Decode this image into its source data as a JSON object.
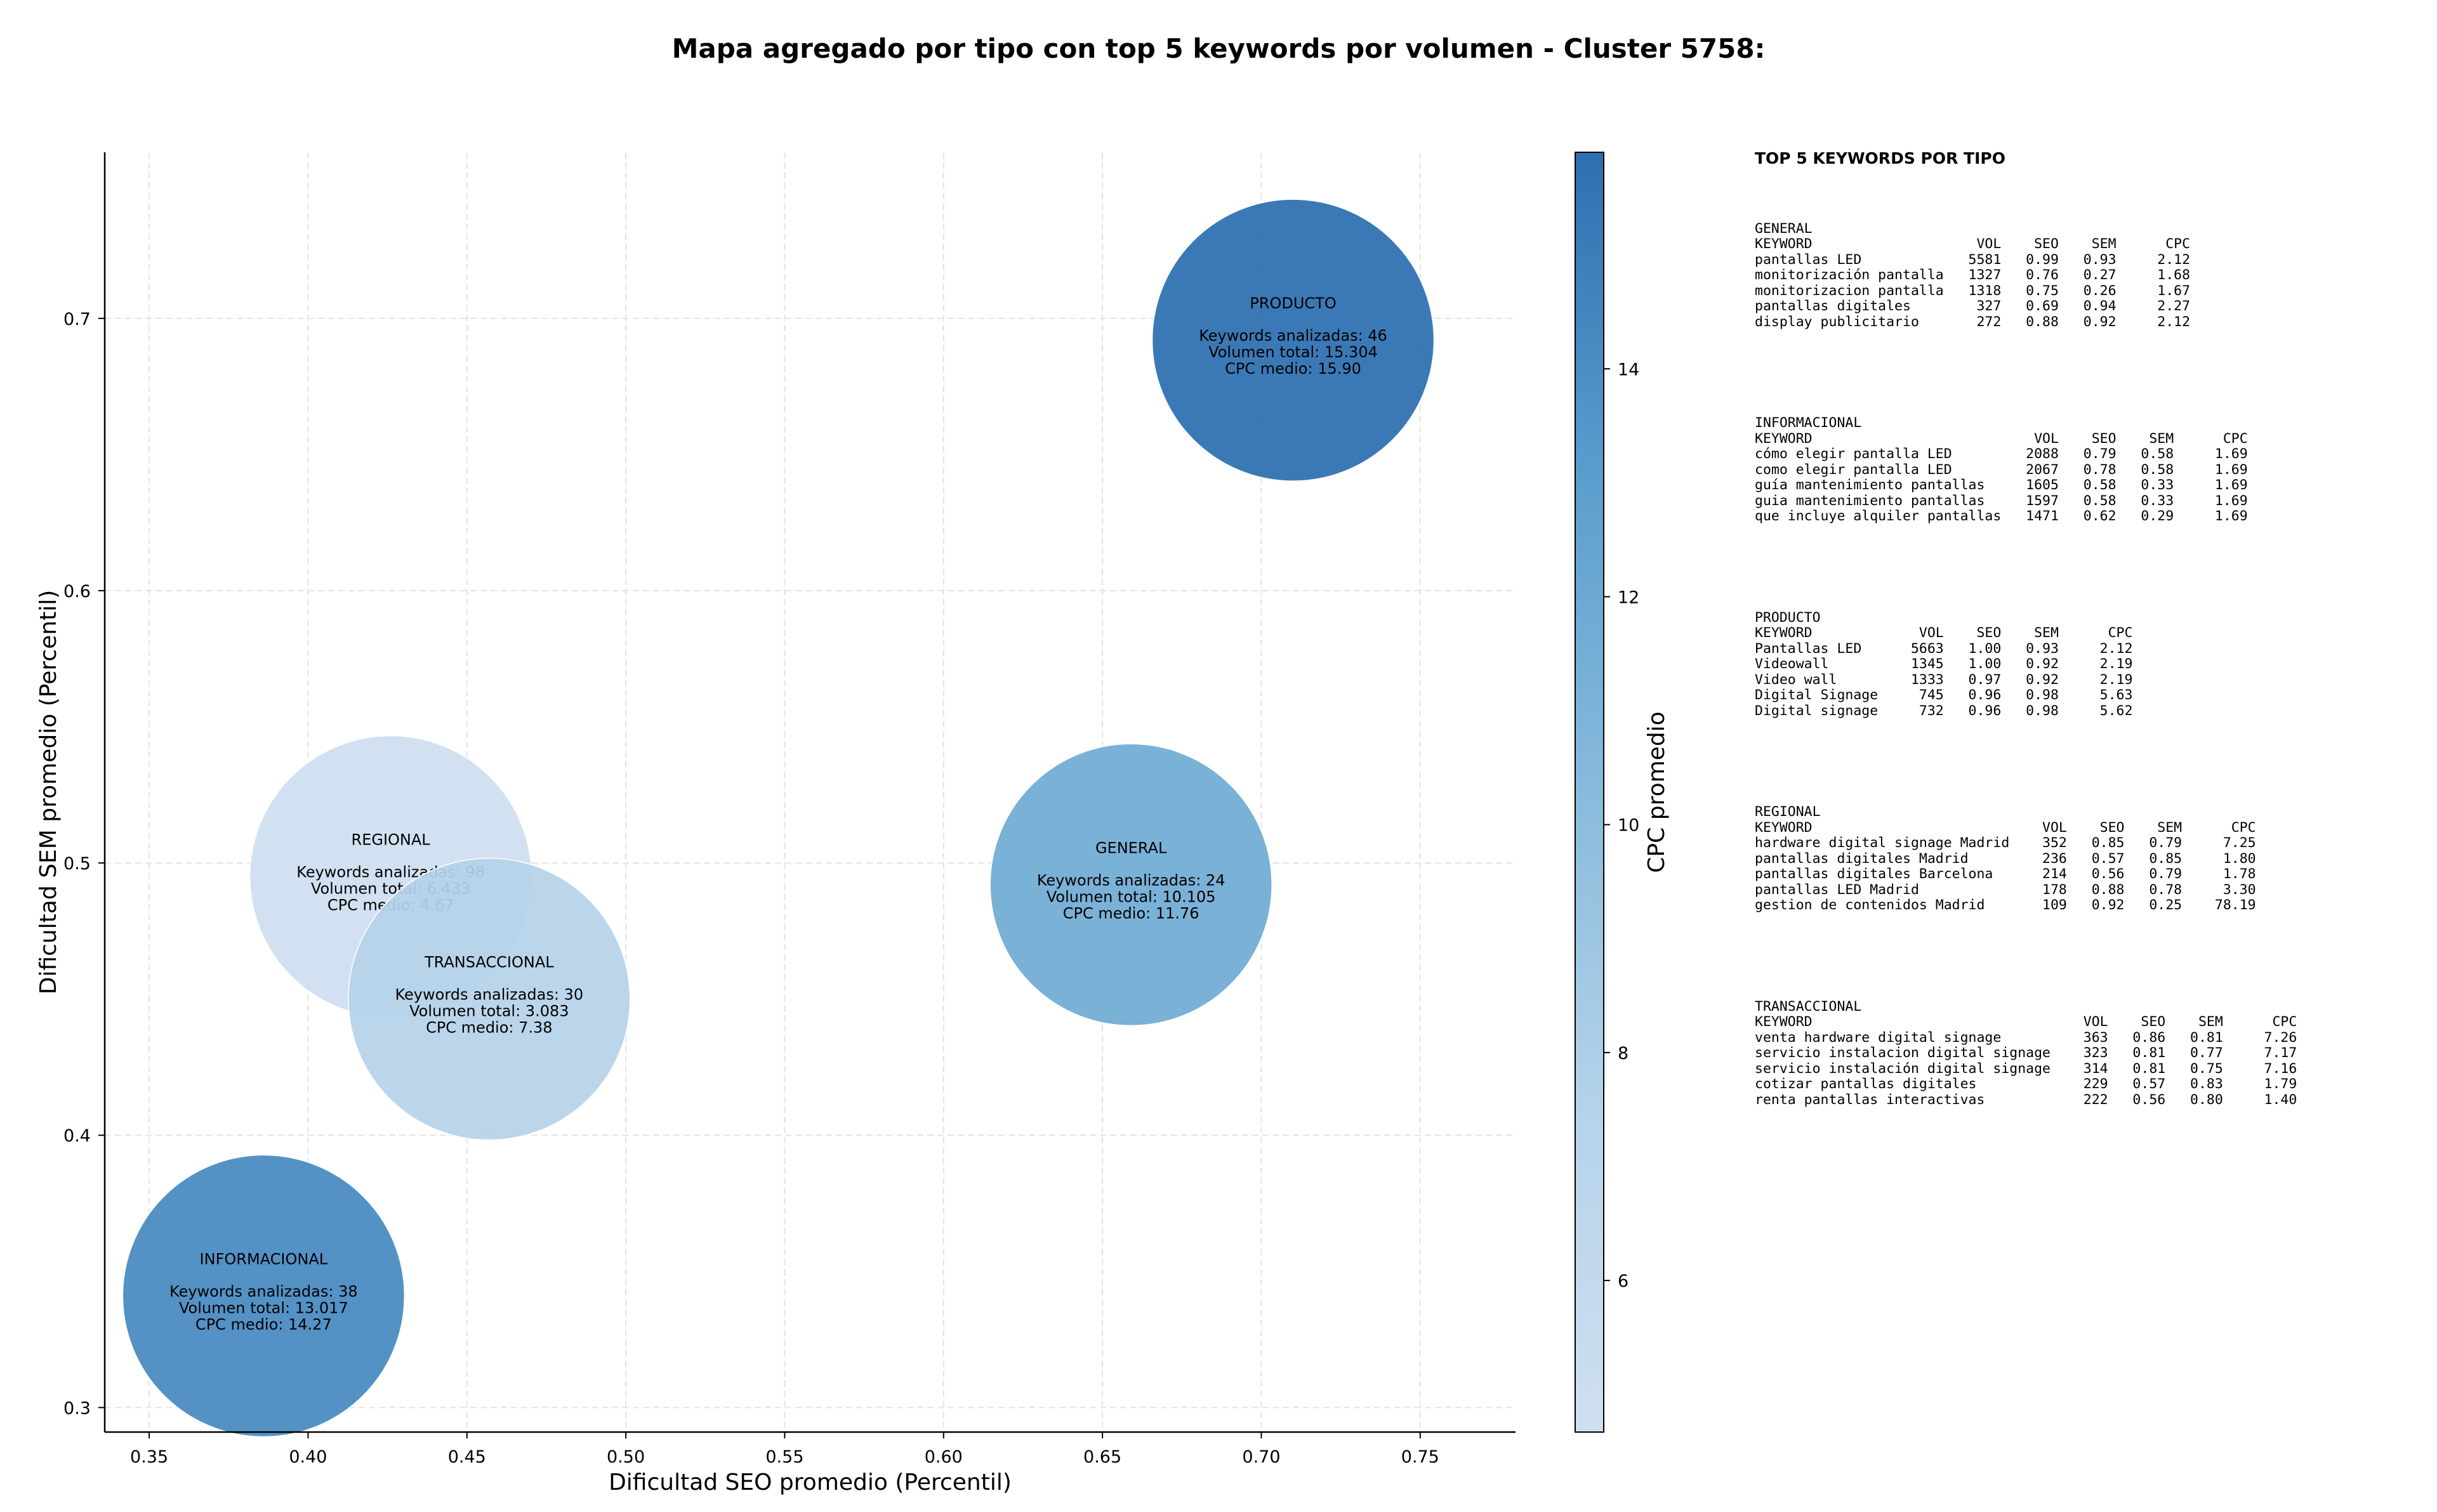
{
  "chart_data": {
    "type": "scatter",
    "title": "Mapa agregado por tipo con top 5 keywords por volumen - Cluster 5758:",
    "xlabel": "Dificultad SEO promedio (Percentil)",
    "ylabel": "Dificultad SEM promedio (Percentil)",
    "colorbar_label": "CPC promedio",
    "xlim": [
      0.336,
      0.78
    ],
    "ylim": [
      0.291,
      0.761
    ],
    "x_ticks": [
      "0.35",
      "0.40",
      "0.45",
      "0.50",
      "0.55",
      "0.60",
      "0.65",
      "0.70",
      "0.75"
    ],
    "y_ticks": [
      "0.3",
      "0.4",
      "0.5",
      "0.6",
      "0.7"
    ],
    "colorbar_ticks": [
      "6",
      "8",
      "10",
      "12",
      "14"
    ],
    "colorbar_range": [
      4.67,
      15.9
    ],
    "grid": true,
    "points": [
      {
        "name": "REGIONAL",
        "x": 0.426,
        "y": 0.495,
        "line1": "Keywords analizadas: 98",
        "line2": "Volumen total: 6.433",
        "line3": "CPC medio: 4.67",
        "cpc": 4.67
      },
      {
        "name": "TRANSACCIONAL",
        "x": 0.457,
        "y": 0.45,
        "line1": "Keywords analizadas: 30",
        "line2": "Volumen total: 3.083",
        "line3": "CPC medio: 7.38",
        "cpc": 7.38
      },
      {
        "name": "GENERAL",
        "x": 0.659,
        "y": 0.492,
        "line1": "Keywords analizadas: 24",
        "line2": "Volumen total: 10.105",
        "line3": "CPC medio: 11.76",
        "cpc": 11.76
      },
      {
        "name": "INFORMACIONAL",
        "x": 0.386,
        "y": 0.341,
        "line1": "Keywords analizadas: 38",
        "line2": "Volumen total: 13.017",
        "line3": "CPC medio: 14.27",
        "cpc": 14.27
      },
      {
        "name": "PRODUCTO",
        "x": 0.71,
        "y": 0.692,
        "line1": "Keywords analizadas: 46",
        "line2": "Volumen total: 15.304",
        "line3": "CPC medio: 15.90",
        "cpc": 15.9
      }
    ]
  },
  "side_panel": {
    "title": "TOP 5 KEYWORDS POR TIPO",
    "sections": [
      {
        "lines": [
          "GENERAL",
          "KEYWORD                    VOL    SEO    SEM      CPC",
          "pantallas LED             5581   0.99   0.93     2.12",
          "monitorización pantalla   1327   0.76   0.27     1.68",
          "monitorizacion pantalla   1318   0.75   0.26     1.67",
          "pantallas digitales        327   0.69   0.94     2.27",
          "display publicitario       272   0.88   0.92     2.12"
        ]
      },
      {
        "lines": [
          "INFORMACIONAL",
          "KEYWORD                           VOL    SEO    SEM      CPC",
          "cómo elegir pantalla LED         2088   0.79   0.58     1.69",
          "como elegir pantalla LED         2067   0.78   0.58     1.69",
          "guía mantenimiento pantallas     1605   0.58   0.33     1.69",
          "guia mantenimiento pantallas     1597   0.58   0.33     1.69",
          "que incluye alquiler pantallas   1471   0.62   0.29     1.69"
        ]
      },
      {
        "lines": [
          "PRODUCTO",
          "KEYWORD             VOL    SEO    SEM      CPC",
          "Pantallas LED      5663   1.00   0.93     2.12",
          "Videowall          1345   1.00   0.92     2.19",
          "Video wall         1333   0.97   0.92     2.19",
          "Digital Signage     745   0.96   0.98     5.63",
          "Digital signage     732   0.96   0.98     5.62"
        ]
      },
      {
        "lines": [
          "REGIONAL",
          "KEYWORD                            VOL    SEO    SEM      CPC",
          "hardware digital signage Madrid    352   0.85   0.79     7.25",
          "pantallas digitales Madrid         236   0.57   0.85     1.80",
          "pantallas digitales Barcelona      214   0.56   0.79     1.78",
          "pantallas LED Madrid               178   0.88   0.78     3.30",
          "gestion de contenidos Madrid       109   0.92   0.25    78.19"
        ]
      },
      {
        "lines": [
          "TRANSACCIONAL",
          "KEYWORD                                 VOL    SEO    SEM      CPC",
          "venta hardware digital signage          363   0.86   0.81     7.26",
          "servicio instalacion digital signage    323   0.81   0.77     7.17",
          "servicio instalación digital signage    314   0.81   0.75     7.16",
          "cotizar pantallas digitales             229   0.57   0.83     1.79",
          "renta pantallas interactivas            222   0.56   0.80     1.40"
        ]
      }
    ]
  }
}
